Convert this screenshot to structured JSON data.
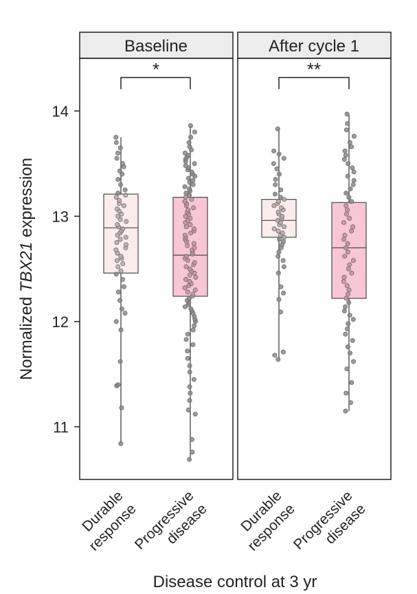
{
  "chart_data": {
    "type": "box",
    "ylabel_pre": "Normalized ",
    "ylabel_italic": "TBX21",
    "ylabel_post": " expression",
    "xlabel": "Disease control at 3 yr",
    "ylim": [
      10.5,
      14.5
    ],
    "yticks": [
      11,
      12,
      13,
      14
    ],
    "colors": {
      "durable": "#fdecee",
      "progressive": "#f9c6d6",
      "box_stroke": "#555555",
      "point_gray": "#8a8a8a"
    },
    "panels": [
      {
        "title": "Baseline",
        "significance": "*",
        "groups": [
          {
            "label_line1": "Durable",
            "label_line2": "response",
            "fill_key": "durable",
            "q1": 12.46,
            "median": 12.89,
            "q3": 13.21,
            "whisker_low": 10.84,
            "whisker_high": 13.75,
            "points": [
              10.84,
              11.18,
              11.39,
              11.4,
              11.62,
              11.92,
              12.0,
              12.08,
              12.12,
              12.2,
              12.28,
              12.33,
              12.4,
              12.45,
              12.48,
              12.52,
              12.55,
              12.58,
              12.6,
              12.62,
              12.65,
              12.68,
              12.7,
              12.73,
              12.75,
              12.78,
              12.8,
              12.82,
              12.84,
              12.86,
              12.88,
              12.9,
              12.92,
              12.95,
              12.97,
              13.0,
              13.02,
              13.05,
              13.07,
              13.1,
              13.12,
              13.15,
              13.18,
              13.2,
              13.22,
              13.25,
              13.3,
              13.35,
              13.4,
              13.43,
              13.47,
              13.5,
              13.55,
              13.6,
              13.65,
              13.7,
              13.75
            ]
          },
          {
            "label_line1": "Progressive",
            "label_line2": "disease",
            "fill_key": "progressive",
            "q1": 12.24,
            "median": 12.63,
            "q3": 13.18,
            "whisker_low": 10.69,
            "whisker_high": 13.86,
            "points": [
              10.69,
              10.76,
              10.88,
              11.12,
              11.16,
              11.25,
              11.32,
              11.38,
              11.45,
              11.52,
              11.58,
              11.65,
              11.72,
              11.78,
              11.83,
              11.88,
              11.92,
              11.96,
              12.0,
              12.02,
              12.05,
              12.08,
              12.1,
              12.12,
              12.14,
              12.16,
              12.18,
              12.2,
              12.22,
              12.24,
              12.26,
              12.28,
              12.3,
              12.32,
              12.34,
              12.36,
              12.38,
              12.4,
              12.42,
              12.44,
              12.46,
              12.48,
              12.5,
              12.52,
              12.54,
              12.56,
              12.58,
              12.6,
              12.62,
              12.64,
              12.66,
              12.68,
              12.7,
              12.72,
              12.74,
              12.76,
              12.78,
              12.8,
              12.82,
              12.84,
              12.86,
              12.88,
              12.9,
              12.92,
              12.94,
              12.96,
              12.98,
              13.0,
              13.02,
              13.04,
              13.06,
              13.08,
              13.1,
              13.12,
              13.14,
              13.16,
              13.18,
              13.2,
              13.22,
              13.24,
              13.26,
              13.28,
              13.3,
              13.32,
              13.34,
              13.36,
              13.38,
              13.4,
              13.42,
              13.44,
              13.46,
              13.48,
              13.5,
              13.52,
              13.54,
              13.56,
              13.58,
              13.6,
              13.63,
              13.66,
              13.7,
              13.75,
              13.8,
              13.86
            ]
          }
        ]
      },
      {
        "title": "After cycle 1",
        "significance": "**",
        "groups": [
          {
            "label_line1": "Durable",
            "label_line2": "response",
            "fill_key": "durable",
            "q1": 12.8,
            "median": 12.96,
            "q3": 13.16,
            "whisker_low": 11.64,
            "whisker_high": 13.83,
            "points": [
              11.64,
              11.68,
              11.71,
              12.09,
              12.21,
              12.27,
              12.33,
              12.46,
              12.52,
              12.58,
              12.62,
              12.66,
              12.7,
              12.73,
              12.76,
              12.78,
              12.8,
              12.82,
              12.84,
              12.86,
              12.88,
              12.9,
              12.92,
              12.94,
              12.96,
              12.98,
              13.0,
              13.02,
              13.04,
              13.06,
              13.08,
              13.1,
              13.12,
              13.14,
              13.16,
              13.18,
              13.21,
              13.25,
              13.3,
              13.35,
              13.4,
              13.45,
              13.5,
              13.55,
              13.59,
              13.62,
              13.83
            ]
          },
          {
            "label_line1": "Progressive",
            "label_line2": "disease",
            "fill_key": "progressive",
            "q1": 12.22,
            "median": 12.7,
            "q3": 13.13,
            "whisker_low": 11.15,
            "whisker_high": 13.97,
            "points": [
              11.15,
              11.23,
              11.32,
              11.42,
              11.55,
              11.62,
              11.7,
              11.76,
              11.82,
              11.88,
              11.93,
              11.98,
              12.02,
              12.06,
              12.1,
              12.14,
              12.18,
              12.22,
              12.26,
              12.3,
              12.34,
              12.38,
              12.42,
              12.46,
              12.5,
              12.54,
              12.58,
              12.62,
              12.66,
              12.7,
              12.74,
              12.78,
              12.82,
              12.86,
              12.9,
              12.94,
              12.98,
              13.02,
              13.06,
              13.1,
              13.14,
              13.18,
              13.22,
              13.26,
              13.3,
              13.34,
              13.38,
              13.42,
              13.46,
              13.5,
              13.54,
              13.58,
              13.62,
              13.66,
              13.7,
              13.76,
              13.82,
              13.88,
              13.97
            ]
          }
        ]
      }
    ]
  }
}
